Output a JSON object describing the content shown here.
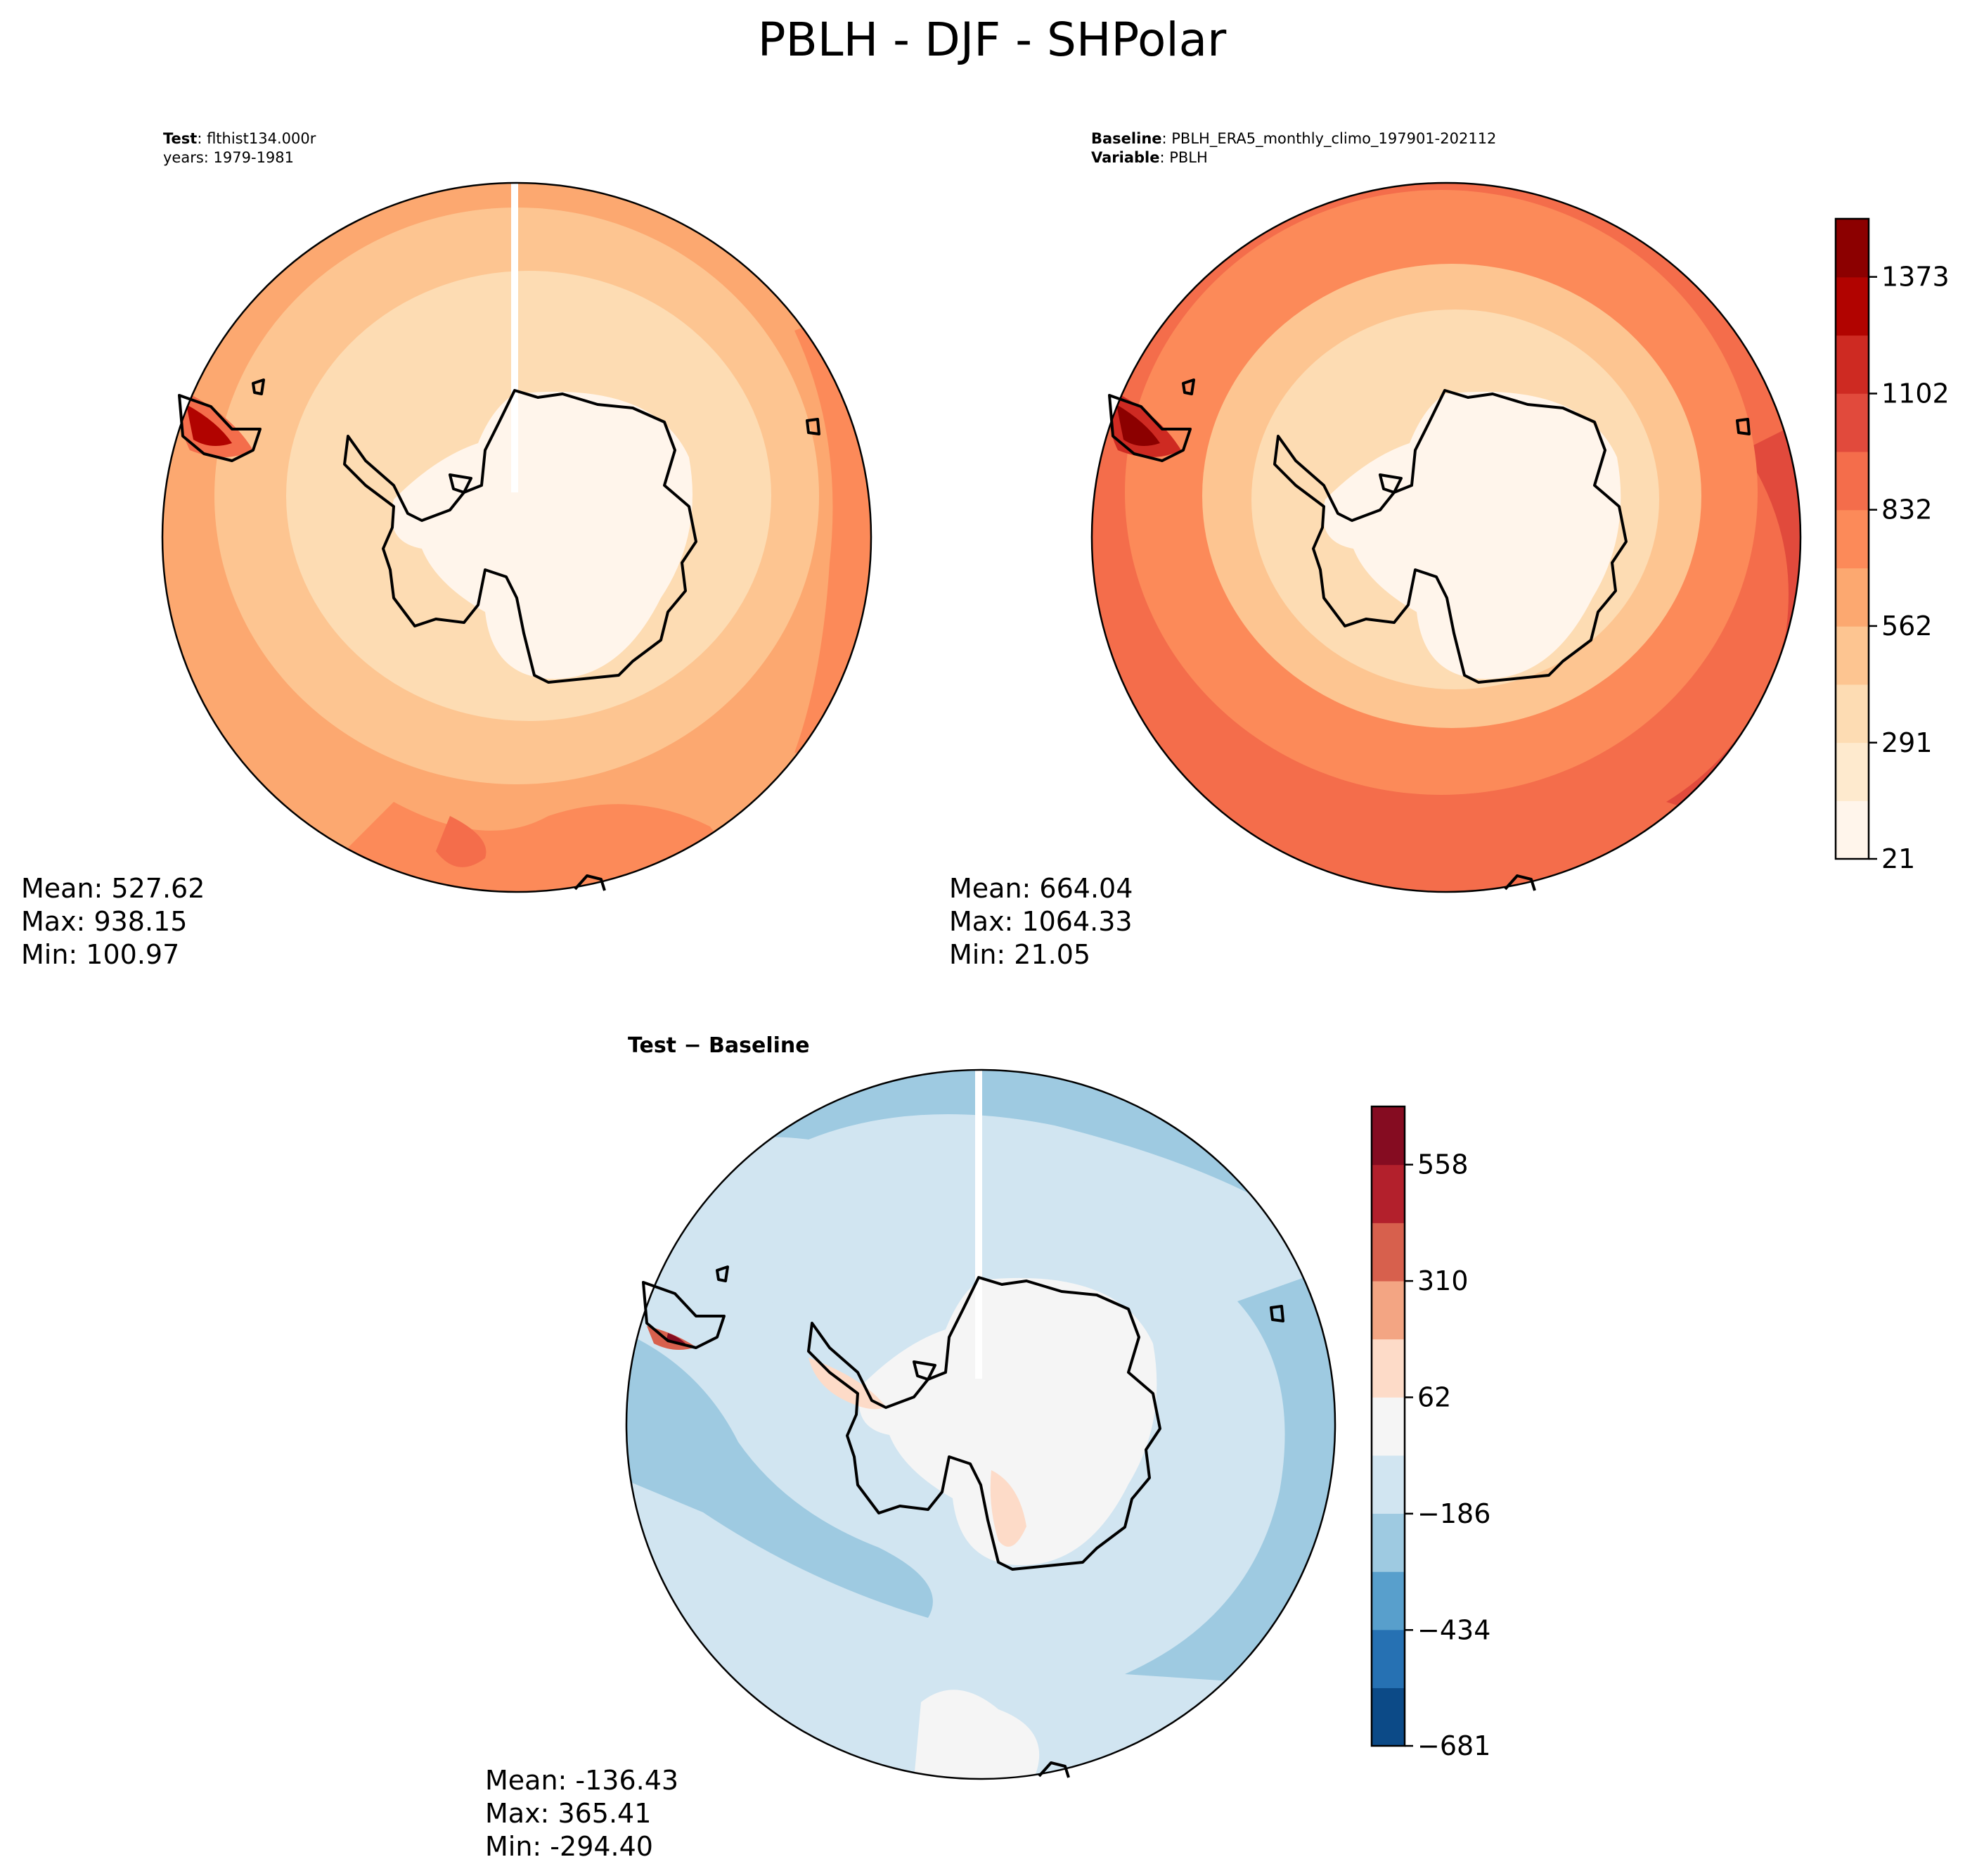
{
  "figure": {
    "title": "PBLH - DJF - SHPolar"
  },
  "panels": {
    "test": {
      "header_line1_label": "Test",
      "header_line1_value": ": flthist134.000r",
      "header_line2": "years: 1979-1981",
      "stats": {
        "mean": "Mean: 527.62",
        "max": "Max: 938.15",
        "min": "Min: 100.97"
      }
    },
    "baseline": {
      "header_line1_label": "Baseline",
      "header_line1_value": ": PBLH_ERA5_monthly_climo_197901-202112",
      "header_line2_label": "Variable",
      "header_line2_value": ": PBLH",
      "stats": {
        "mean": "Mean: 664.04",
        "max": "Max: 1064.33",
        "min": "Min: 21.05"
      }
    },
    "diff": {
      "title": "Test − Baseline",
      "stats": {
        "mean": "Mean: -136.43",
        "max": "Max: 365.41",
        "min": "Min: -294.40"
      }
    }
  },
  "chart_data": [
    {
      "type": "heatmap",
      "name": "Test",
      "projection": "south-polar-stereographic",
      "variable": "PBLH",
      "season": "DJF",
      "mean": 527.62,
      "max": 938.15,
      "min": 100.97
    },
    {
      "type": "heatmap",
      "name": "Baseline",
      "projection": "south-polar-stereographic",
      "variable": "PBLH",
      "season": "DJF",
      "mean": 664.04,
      "max": 1064.33,
      "min": 21.05,
      "colorbar": {
        "range": [
          21,
          1508
        ],
        "ticks": [
          21,
          291,
          562,
          832,
          1102,
          1373
        ],
        "tick_labels": [
          "21",
          "291",
          "562",
          "832",
          "1102",
          "1373"
        ],
        "levels": 11,
        "colors": [
          "#fff5eb",
          "#feeace",
          "#fddcb3",
          "#fdc591",
          "#fca870",
          "#fc8a59",
          "#f46d4b",
          "#e14a3c",
          "#ce2a22",
          "#b10300",
          "#8c0000"
        ]
      }
    },
    {
      "type": "heatmap",
      "name": "Test - Baseline",
      "projection": "south-polar-stereographic",
      "variable": "PBLH",
      "season": "DJF",
      "mean": -136.43,
      "max": 365.41,
      "min": -294.4,
      "colorbar": {
        "range": [
          -681,
          682
        ],
        "ticks": [
          -681,
          -434,
          -186,
          62,
          310,
          558
        ],
        "tick_labels": [
          "−681",
          "−434",
          "−186",
          "62",
          "310",
          "558"
        ],
        "levels": 11,
        "colors": [
          "#0c4a87",
          "#2671b3",
          "#589fcc",
          "#9ecae1",
          "#d1e5f1",
          "#f5f5f5",
          "#fddbc8",
          "#f3a583",
          "#d7604d",
          "#b3202c",
          "#850c21"
        ]
      }
    }
  ],
  "colors": {
    "continent": "#fef6ea",
    "ice_shelf_diff": "#f5f5f5",
    "coastline": "#000000"
  }
}
